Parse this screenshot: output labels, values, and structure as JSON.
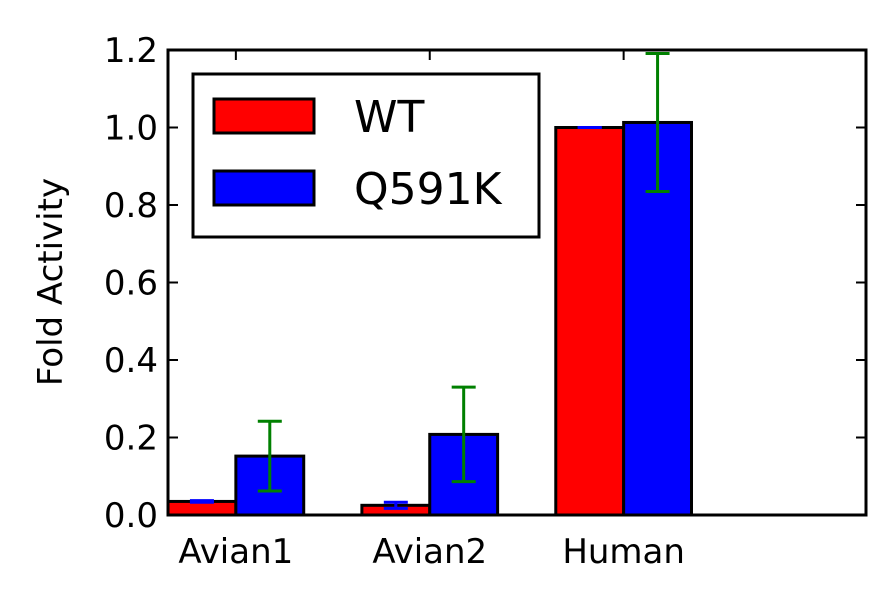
{
  "chart_data": {
    "type": "bar",
    "title": "",
    "xlabel": "",
    "ylabel": "Fold Activity",
    "categories": [
      "Avian1",
      "Avian2",
      "Human"
    ],
    "series": [
      {
        "name": "WT",
        "color": "#ff0000",
        "values": [
          0.035,
          0.025,
          1.0
        ],
        "error": [
          0.002,
          0.008,
          0.0
        ],
        "error_color": "#0000ff"
      },
      {
        "name": "Q591K",
        "color": "#0000ff",
        "values": [
          0.152,
          0.208,
          1.013
        ],
        "error": [
          0.09,
          0.122,
          0.178
        ],
        "error_color": "#008000"
      }
    ],
    "ylim": [
      0.0,
      1.2
    ],
    "yticks": [
      "0.0",
      "0.2",
      "0.4",
      "0.6",
      "0.8",
      "1.0",
      "1.2"
    ],
    "grid": false,
    "legend_position": "top-left"
  }
}
